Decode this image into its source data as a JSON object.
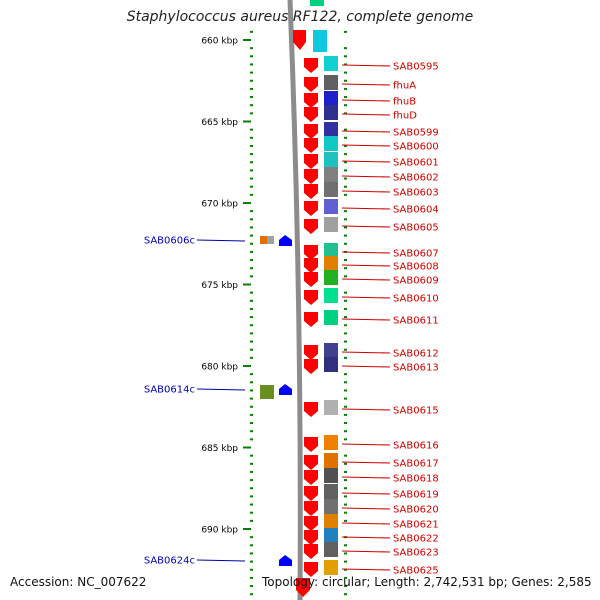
{
  "title": "Staphylococcus aureus RF122, complete genome",
  "footer": {
    "accession": "Accession: NC_007622",
    "summary": "Topology: circular; Length: 2,742,531 bp; Genes: 2,585"
  },
  "colors": {
    "forward_arrow": "#ff0000",
    "reverse_arrow": "#0000ff",
    "backbone": "#8c8c8c",
    "tick": "#008000",
    "forward_label": "#cc0000",
    "reverse_label": "#0000aa",
    "kbp_label": "#000000"
  },
  "scale": {
    "unit": "kbp",
    "major_ticks": [
      660,
      665,
      670,
      675,
      680,
      685,
      690
    ],
    "labels": [
      "660 kbp",
      "665 kbp",
      "670 kbp",
      "675 kbp",
      "680 kbp",
      "685 kbp",
      "690 kbp"
    ]
  },
  "forward_genes": [
    "SAB0595",
    "fhuA",
    "fhuB",
    "fhuD",
    "SAB0599",
    "SAB0600",
    "SAB0601",
    "SAB0602",
    "SAB0603",
    "SAB0604",
    "SAB0605",
    "SAB0607",
    "SAB0608",
    "SAB0609",
    "SAB0610",
    "SAB0611",
    "SAB0612",
    "SAB0613",
    "SAB0615",
    "SAB0616",
    "SAB0617",
    "SAB0618",
    "SAB0619",
    "SAB0620",
    "SAB0621",
    "SAB0622",
    "SAB0623",
    "SAB0625"
  ],
  "reverse_genes": [
    "SAB0606c",
    "SAB0614c",
    "SAB0624c"
  ]
}
